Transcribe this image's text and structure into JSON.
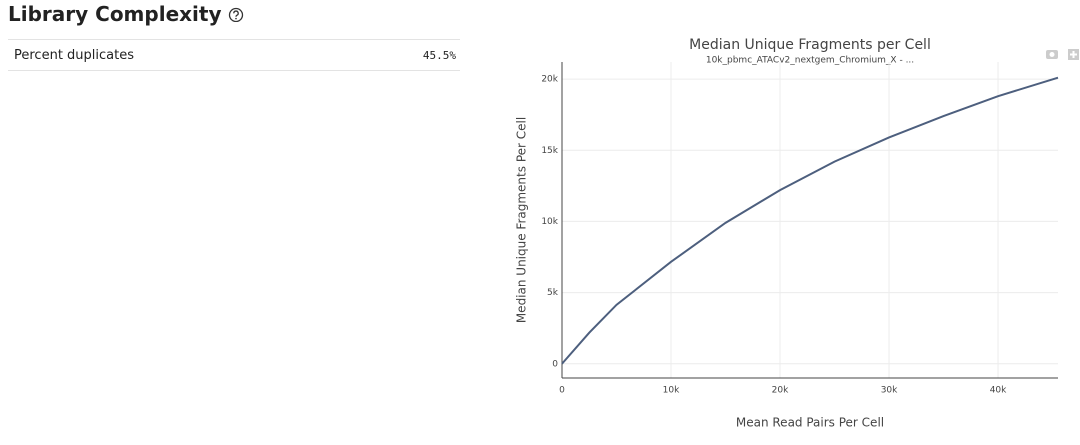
{
  "header": {
    "title": "Library Complexity"
  },
  "table": {
    "rows": [
      [
        "Percent duplicates",
        "45.5%"
      ]
    ]
  },
  "chart_data": {
    "type": "line",
    "title": "Median Unique Fragments per Cell",
    "subtitle": "10k_pbmc_ATACv2_nextgem_Chromium_X - ...",
    "x_label": "Mean Read Pairs Per Cell",
    "y_label": "Median Unique Fragments Per Cell",
    "x": [
      0,
      2500,
      5000,
      10000,
      15000,
      20000,
      25000,
      30000,
      35000,
      40000,
      45500
    ],
    "series": [
      {
        "name": "Median Unique Fragments per Cell",
        "color": "#4d5f7e",
        "values": [
          0,
          2180,
          4140,
          7160,
          9900,
          12200,
          14200,
          15900,
          17400,
          18800,
          20100
        ]
      }
    ],
    "xlim": [
      0,
      45500
    ],
    "ylim": [
      -1000,
      21200
    ],
    "xticks": [
      0,
      {
        "value": 10000,
        "label": "10k"
      },
      {
        "value": 20000,
        "label": "20k"
      },
      {
        "value": 30000,
        "label": "30k"
      },
      {
        "value": 40000,
        "label": "40k"
      }
    ],
    "yticks": [
      0,
      {
        "value": 5000,
        "label": "5k"
      },
      {
        "value": 10000,
        "label": "10k"
      },
      {
        "value": 15000,
        "label": "15k"
      },
      {
        "value": 20000,
        "label": "20k"
      }
    ],
    "grid": true
  }
}
